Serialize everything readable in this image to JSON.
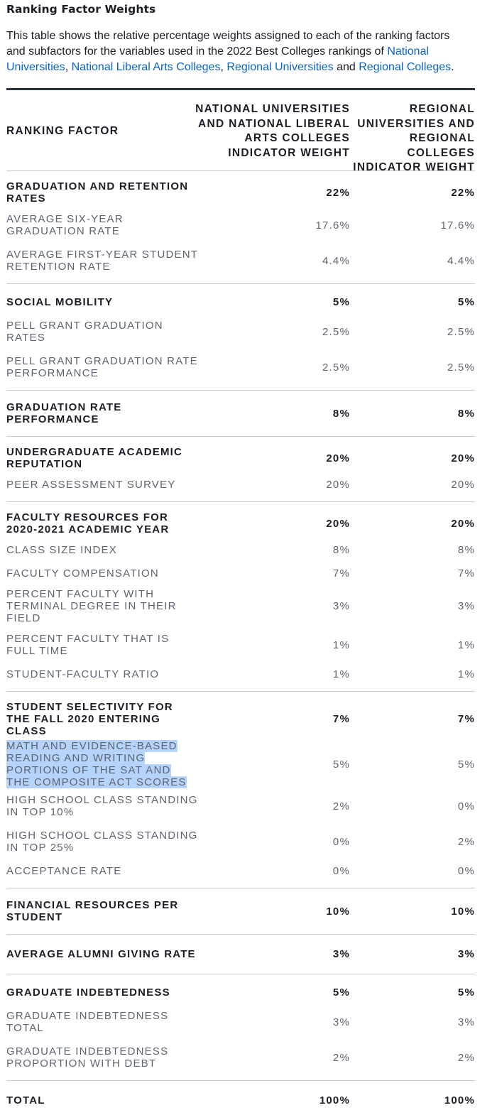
{
  "title": "Ranking Factor Weights",
  "intro": {
    "text_before": "This table shows the relative percentage weights assigned to each of the ranking factors and subfactors for the variables used in the 2022 Best Colleges rankings of ",
    "link_national_universities": "National Universities",
    "sep1": ", ",
    "link_national_liberal_arts": "National Liberal Arts Colleges",
    "sep2": ", ",
    "link_regional_universities": "Regional Universities",
    "sep3": " and ",
    "link_regional_colleges": "Regional Colleges",
    "end": "."
  },
  "table": {
    "headers": {
      "factor": "RANKING FACTOR",
      "national": "NATIONAL UNIVERSITIES AND NATIONAL LIBERAL ARTS COLLEGES INDICATOR WEIGHT",
      "regional": "REGIONAL UNIVERSITIES AND REGIONAL COLLEGES INDICATOR WEIGHT"
    },
    "groups": [
      {
        "rows": [
          {
            "type": "main",
            "factor": "GRADUATION AND RETENTION RATES",
            "national": "22%",
            "regional": "22%"
          },
          {
            "type": "sub",
            "factor": "AVERAGE SIX-YEAR GRADUATION RATE",
            "national": "17.6%",
            "regional": "17.6%"
          },
          {
            "type": "sub",
            "factor": "AVERAGE FIRST-YEAR STUDENT RETENTION RATE",
            "national": "4.4%",
            "regional": "4.4%"
          }
        ]
      },
      {
        "rows": [
          {
            "type": "main",
            "factor": "SOCIAL MOBILITY",
            "national": "5%",
            "regional": "5%"
          },
          {
            "type": "sub",
            "factor": "PELL GRANT GRADUATION RATES",
            "national": "2.5%",
            "regional": "2.5%"
          },
          {
            "type": "sub",
            "factor": "PELL GRANT GRADUATION RATE PERFORMANCE",
            "national": "2.5%",
            "regional": "2.5%"
          }
        ]
      },
      {
        "rows": [
          {
            "type": "main",
            "factor": "GRADUATION RATE PERFORMANCE",
            "national": "8%",
            "regional": "8%"
          }
        ]
      },
      {
        "rows": [
          {
            "type": "main",
            "factor": "UNDERGRADUATE ACADEMIC REPUTATION",
            "national": "20%",
            "regional": "20%"
          },
          {
            "type": "sub",
            "factor": "PEER ASSESSMENT SURVEY",
            "national": "20%",
            "regional": "20%"
          }
        ]
      },
      {
        "rows": [
          {
            "type": "main",
            "factor": "FACULTY RESOURCES FOR 2020-2021 ACADEMIC YEAR",
            "national": "20%",
            "regional": "20%"
          },
          {
            "type": "sub",
            "factor": "CLASS SIZE INDEX",
            "national": "8%",
            "regional": "8%"
          },
          {
            "type": "sub",
            "factor": "FACULTY COMPENSATION",
            "national": "7%",
            "regional": "7%"
          },
          {
            "type": "sub",
            "factor": "PERCENT FACULTY WITH TERMINAL DEGREE IN THEIR FIELD",
            "national": "3%",
            "regional": "3%"
          },
          {
            "type": "sub",
            "factor": "PERCENT FACULTY THAT IS FULL TIME",
            "national": "1%",
            "regional": "1%"
          },
          {
            "type": "sub",
            "factor": "STUDENT-FACULTY RATIO",
            "national": "1%",
            "regional": "1%"
          }
        ]
      },
      {
        "rows": [
          {
            "type": "main",
            "factor": "STUDENT SELECTIVITY FOR THE FALL 2020 ENTERING CLASS",
            "national": "7%",
            "regional": "7%"
          },
          {
            "type": "sub",
            "highlighted": true,
            "factor": "MATH AND EVIDENCE-BASED READING AND WRITING PORTIONS OF THE SAT AND THE COMPOSITE ACT SCORES",
            "national": "5%",
            "regional": "5%"
          },
          {
            "type": "sub",
            "factor": "HIGH SCHOOL CLASS STANDING IN TOP 10%",
            "national": "2%",
            "regional": "0%"
          },
          {
            "type": "sub",
            "factor": "HIGH SCHOOL CLASS STANDING IN TOP 25%",
            "national": "0%",
            "regional": "2%"
          },
          {
            "type": "sub",
            "factor": "ACCEPTANCE RATE",
            "national": "0%",
            "regional": "0%"
          }
        ]
      },
      {
        "rows": [
          {
            "type": "main",
            "factor": "FINANCIAL RESOURCES PER STUDENT",
            "national": "10%",
            "regional": "10%"
          }
        ]
      },
      {
        "rows": [
          {
            "type": "main",
            "factor": "AVERAGE ALUMNI GIVING RATE",
            "national": "3%",
            "regional": "3%"
          }
        ]
      },
      {
        "rows": [
          {
            "type": "main",
            "factor": "GRADUATE INDEBTEDNESS",
            "national": "5%",
            "regional": "5%"
          },
          {
            "type": "sub",
            "factor": "GRADUATE INDEBTEDNESS TOTAL",
            "national": "3%",
            "regional": "3%"
          },
          {
            "type": "sub",
            "factor": "GRADUATE INDEBTEDNESS PROPORTION WITH DEBT",
            "national": "2%",
            "regional": "2%"
          }
        ]
      },
      {
        "rows": [
          {
            "type": "main",
            "factor": "TOTAL",
            "national": "100%",
            "regional": "100%"
          }
        ]
      }
    ]
  }
}
